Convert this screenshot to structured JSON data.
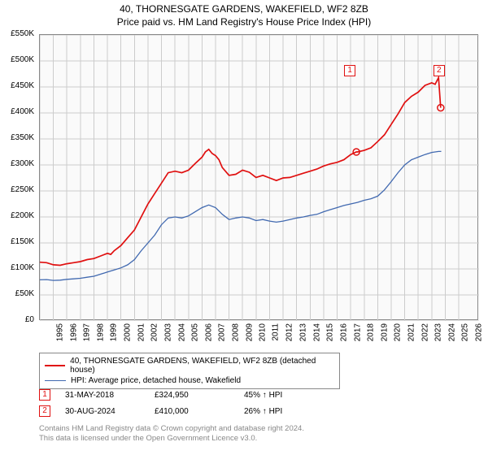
{
  "title": "40, THORNESGATE GARDENS, WAKEFIELD, WF2 8ZB",
  "subtitle": "Price paid vs. HM Land Registry's House Price Index (HPI)",
  "chart": {
    "type": "line",
    "background_color": "#fafafa",
    "border_color": "#888888",
    "grid_color": "#cccccc",
    "label_fontsize": 10,
    "title_fontsize": 12,
    "xlim": [
      1995,
      2027.5
    ],
    "xtick_step": 1,
    "xticks": [
      1995,
      1996,
      1997,
      1998,
      1999,
      2000,
      2001,
      2002,
      2003,
      2004,
      2005,
      2006,
      2007,
      2008,
      2009,
      2010,
      2011,
      2012,
      2013,
      2014,
      2015,
      2016,
      2017,
      2018,
      2019,
      2020,
      2021,
      2022,
      2023,
      2024,
      2025,
      2026
    ],
    "ylim": [
      0,
      550000
    ],
    "ytick_step": 50000,
    "yticks": [
      0,
      50000,
      100000,
      150000,
      200000,
      250000,
      300000,
      350000,
      400000,
      450000,
      500000,
      550000
    ],
    "ytick_prefix": "£",
    "ytick_suffix": "K",
    "series": [
      {
        "id": "property",
        "label": "40, THORNESGATE GARDENS, WAKEFIELD, WF2 8ZB (detached house)",
        "color": "#e01010",
        "width": 1.7,
        "points": [
          [
            1995.0,
            113000
          ],
          [
            1995.5,
            112000
          ],
          [
            1996.0,
            108000
          ],
          [
            1996.5,
            107000
          ],
          [
            1997.0,
            110000
          ],
          [
            1997.5,
            112000
          ],
          [
            1998.0,
            114000
          ],
          [
            1998.5,
            118000
          ],
          [
            1999.0,
            120000
          ],
          [
            1999.5,
            125000
          ],
          [
            2000.0,
            130000
          ],
          [
            2000.25,
            128000
          ],
          [
            2000.5,
            135000
          ],
          [
            2001.0,
            145000
          ],
          [
            2001.5,
            160000
          ],
          [
            2002.0,
            175000
          ],
          [
            2002.5,
            200000
          ],
          [
            2003.0,
            225000
          ],
          [
            2003.5,
            245000
          ],
          [
            2004.0,
            265000
          ],
          [
            2004.5,
            285000
          ],
          [
            2005.0,
            288000
          ],
          [
            2005.5,
            285000
          ],
          [
            2006.0,
            290000
          ],
          [
            2006.5,
            303000
          ],
          [
            2007.0,
            315000
          ],
          [
            2007.25,
            325000
          ],
          [
            2007.5,
            330000
          ],
          [
            2007.75,
            322000
          ],
          [
            2008.0,
            318000
          ],
          [
            2008.25,
            310000
          ],
          [
            2008.5,
            295000
          ],
          [
            2009.0,
            280000
          ],
          [
            2009.5,
            282000
          ],
          [
            2010.0,
            290000
          ],
          [
            2010.5,
            286000
          ],
          [
            2011.0,
            276000
          ],
          [
            2011.5,
            280000
          ],
          [
            2012.0,
            275000
          ],
          [
            2012.5,
            270000
          ],
          [
            2013.0,
            275000
          ],
          [
            2013.5,
            276000
          ],
          [
            2014.0,
            280000
          ],
          [
            2014.5,
            284000
          ],
          [
            2015.0,
            288000
          ],
          [
            2015.5,
            292000
          ],
          [
            2016.0,
            298000
          ],
          [
            2016.5,
            302000
          ],
          [
            2017.0,
            305000
          ],
          [
            2017.5,
            310000
          ],
          [
            2018.0,
            320000
          ],
          [
            2018.42,
            324950
          ],
          [
            2018.5,
            325000
          ],
          [
            2019.0,
            328000
          ],
          [
            2019.5,
            333000
          ],
          [
            2020.0,
            345000
          ],
          [
            2020.5,
            358000
          ],
          [
            2021.0,
            378000
          ],
          [
            2021.5,
            398000
          ],
          [
            2022.0,
            420000
          ],
          [
            2022.5,
            432000
          ],
          [
            2023.0,
            440000
          ],
          [
            2023.5,
            453000
          ],
          [
            2024.0,
            458000
          ],
          [
            2024.25,
            455000
          ],
          [
            2024.5,
            468000
          ],
          [
            2024.66,
            410000
          ]
        ]
      },
      {
        "id": "hpi",
        "label": "HPI: Average price, detached house, Wakefield",
        "color": "#4169b0",
        "width": 1.3,
        "points": [
          [
            1995.0,
            79000
          ],
          [
            1995.5,
            79500
          ],
          [
            1996.0,
            78000
          ],
          [
            1996.5,
            78500
          ],
          [
            1997.0,
            80000
          ],
          [
            1997.5,
            81000
          ],
          [
            1998.0,
            82000
          ],
          [
            1998.5,
            84000
          ],
          [
            1999.0,
            86000
          ],
          [
            1999.5,
            90000
          ],
          [
            2000.0,
            94000
          ],
          [
            2000.5,
            98000
          ],
          [
            2001.0,
            102000
          ],
          [
            2001.5,
            108000
          ],
          [
            2002.0,
            118000
          ],
          [
            2002.5,
            135000
          ],
          [
            2003.0,
            150000
          ],
          [
            2003.5,
            165000
          ],
          [
            2004.0,
            185000
          ],
          [
            2004.5,
            198000
          ],
          [
            2005.0,
            200000
          ],
          [
            2005.5,
            198000
          ],
          [
            2006.0,
            202000
          ],
          [
            2006.5,
            210000
          ],
          [
            2007.0,
            218000
          ],
          [
            2007.5,
            223000
          ],
          [
            2008.0,
            218000
          ],
          [
            2008.5,
            205000
          ],
          [
            2009.0,
            195000
          ],
          [
            2009.5,
            198000
          ],
          [
            2010.0,
            200000
          ],
          [
            2010.5,
            198000
          ],
          [
            2011.0,
            193000
          ],
          [
            2011.5,
            195000
          ],
          [
            2012.0,
            192000
          ],
          [
            2012.5,
            190000
          ],
          [
            2013.0,
            192000
          ],
          [
            2013.5,
            195000
          ],
          [
            2014.0,
            198000
          ],
          [
            2014.5,
            200000
          ],
          [
            2015.0,
            203000
          ],
          [
            2015.5,
            205000
          ],
          [
            2016.0,
            210000
          ],
          [
            2016.5,
            214000
          ],
          [
            2017.0,
            218000
          ],
          [
            2017.5,
            222000
          ],
          [
            2018.0,
            225000
          ],
          [
            2018.5,
            228000
          ],
          [
            2019.0,
            232000
          ],
          [
            2019.5,
            235000
          ],
          [
            2020.0,
            240000
          ],
          [
            2020.5,
            252000
          ],
          [
            2021.0,
            268000
          ],
          [
            2021.5,
            285000
          ],
          [
            2022.0,
            300000
          ],
          [
            2022.5,
            310000
          ],
          [
            2023.0,
            315000
          ],
          [
            2023.5,
            320000
          ],
          [
            2024.0,
            324000
          ],
          [
            2024.5,
            326000
          ],
          [
            2024.7,
            326000
          ]
        ]
      }
    ],
    "markers": [
      {
        "n": "1",
        "x": 2018.42,
        "y": 324950,
        "color": "#e01010",
        "label_x": 2018.0,
        "label_y": 480000
      },
      {
        "n": "2",
        "x": 2024.66,
        "y": 410000,
        "color": "#e01010",
        "label_x": 2024.6,
        "label_y": 480000
      }
    ]
  },
  "legend": {
    "rows": [
      {
        "color": "#e01010",
        "thick": true,
        "label": "40, THORNESGATE GARDENS, WAKEFIELD, WF2 8ZB (detached house)"
      },
      {
        "color": "#4169b0",
        "thick": false,
        "label": "HPI: Average price, detached house, Wakefield"
      }
    ]
  },
  "events": [
    {
      "n": "1",
      "color": "#e01010",
      "date": "31-MAY-2018",
      "price": "£324,950",
      "pct": "45% ↑ HPI"
    },
    {
      "n": "2",
      "color": "#e01010",
      "date": "30-AUG-2024",
      "price": "£410,000",
      "pct": "26% ↑ HPI"
    }
  ],
  "footer": {
    "line1": "Contains HM Land Registry data © Crown copyright and database right 2024.",
    "line2": "This data is licensed under the Open Government Licence v3.0."
  }
}
